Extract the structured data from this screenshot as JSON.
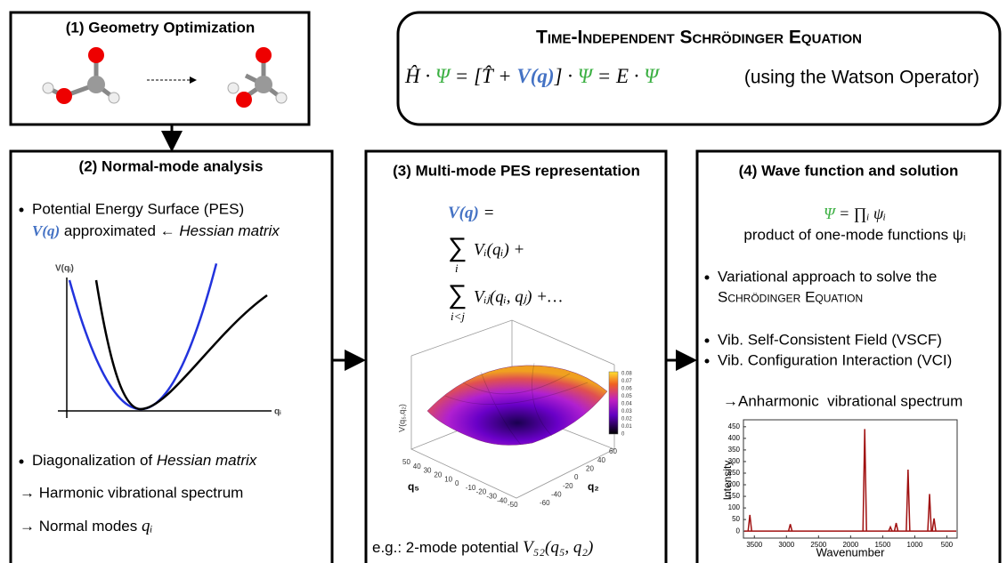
{
  "geometry": {
    "title": "(1) Geometry Optimization"
  },
  "equation": {
    "title": "Time-Independent Schrödinger Equation",
    "formula": [
      "Ĥ · ",
      "Ψ",
      " = [T̂ + ",
      "V(q)",
      "] · ",
      "Ψ",
      " = E · ",
      "Ψ"
    ],
    "note": "(using the Watson Operator)"
  },
  "normal_mode": {
    "title": "(2) Normal-mode analysis",
    "pes_bullet": "Potential Energy Surface (PES)",
    "pes_line": [
      "V(q)",
      " approximated ← ",
      "Hessian matrix"
    ],
    "plot": {
      "y_label": "V(qᵢ)",
      "x_label": "qᵢ"
    },
    "diag": [
      "Diagonalization of ",
      "Hessian matrix"
    ],
    "harmonic": "→ Harmonic vibrational spectrum",
    "modes": [
      "→ Normal modes ",
      "qᵢ"
    ]
  },
  "multimode": {
    "title": "(3) Multi-mode PES representation",
    "lhs": "V(q)",
    "lhs_eq": " =",
    "sum_sign": "∑",
    "sum1_index": "i",
    "sum1_term": "Vᵢ(qᵢ) +",
    "sum2_index": "i<j",
    "sum2_term": "Vᵢⱼ(qᵢ, qⱼ) +…",
    "surface": {
      "z_label": "V(q₅,q₂)",
      "x_label": "q₅",
      "y_label": "q₂",
      "x_ticks": [
        50,
        40,
        30,
        20,
        10,
        0,
        -10,
        -20,
        -30,
        -40,
        -50
      ],
      "y_ticks": [
        60,
        40,
        20,
        0,
        -20,
        -40,
        -60
      ],
      "colorbar_ticks": [
        0.08,
        0.07,
        0.06,
        0.05,
        0.04,
        0.03,
        0.02,
        0.01,
        0
      ]
    },
    "example": [
      "e.g.: 2-mode potential ",
      "V₅₂(q₅, q₂)"
    ]
  },
  "solution": {
    "title": "(4) Wave function and solution",
    "psi": [
      "Ψ",
      " = ∏ᵢ ψᵢ"
    ],
    "product": "product of one-mode functions ψᵢ",
    "variational": "Variational approach to solve the",
    "variational_cont": "Schrödinger Equation",
    "vscf": "Vib. Self-Consistent Field (VSCF)",
    "vci": "Vib. Configuration Interaction (VCI)",
    "anharmonic": "→Anharmonic  vibrational spectrum",
    "spectrum": {
      "y_label": "Intensity",
      "x_label": "Wavenumber",
      "xlim": [
        3670,
        340
      ],
      "ylim": [
        -30,
        480
      ],
      "xticks": [
        3500,
        3000,
        2500,
        2000,
        1500,
        1000,
        500
      ],
      "yticks": [
        0,
        50,
        100,
        150,
        200,
        250,
        300,
        350,
        400,
        450
      ],
      "color": "#a01010",
      "peaks": {
        "x": [
          3570,
          2940,
          1780,
          1380,
          1290,
          1105,
          770,
          700
        ],
        "y": [
          70,
          30,
          440,
          18,
          35,
          265,
          160,
          55
        ]
      }
    }
  }
}
